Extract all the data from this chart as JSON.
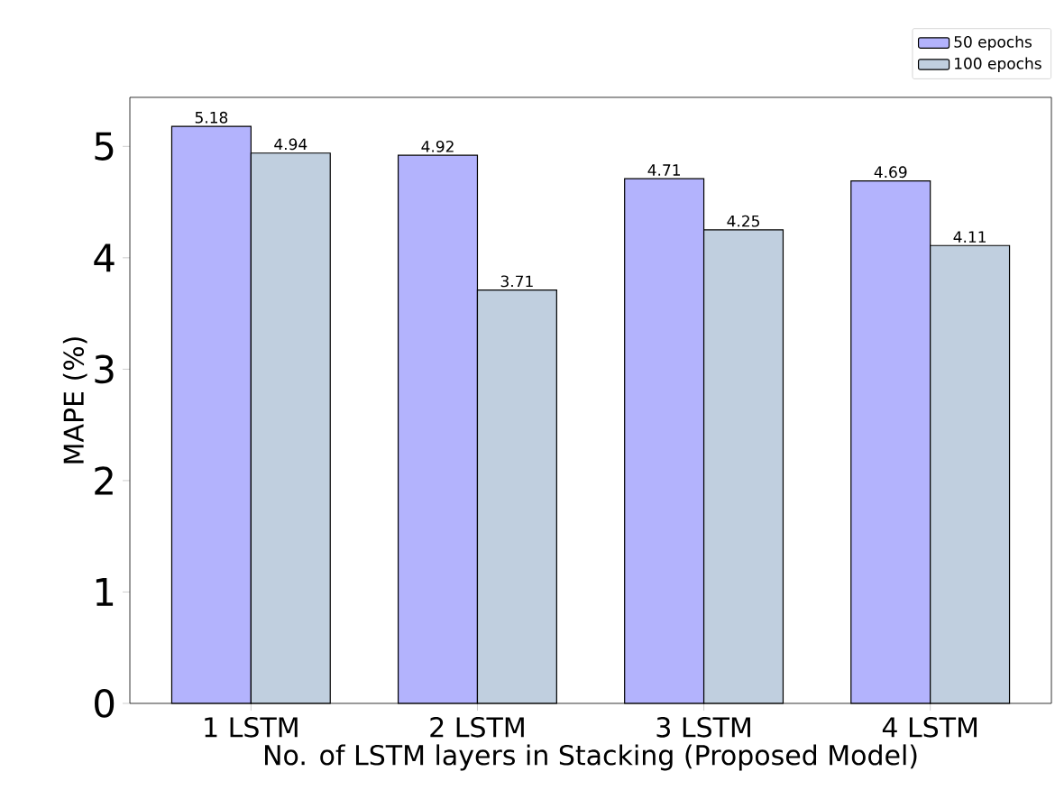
{
  "chart_data": {
    "type": "bar",
    "xlabel": "No. of LSTM layers in Stacking (Proposed Model)",
    "ylabel": "MAPE (%)",
    "categories": [
      "1 LSTM",
      "2 LSTM",
      "3 LSTM",
      "4 LSTM"
    ],
    "series": [
      {
        "name": "50 epochs",
        "color": "#b3b3fd",
        "values": [
          5.18,
          4.92,
          4.71,
          4.69
        ]
      },
      {
        "name": "100 epochs",
        "color": "#c0cfdf",
        "values": [
          4.94,
          3.71,
          4.25,
          4.11
        ]
      }
    ],
    "ylim": [
      0,
      5.44
    ],
    "yticks": [
      0,
      1,
      2,
      3,
      4,
      5
    ],
    "data_labels": true,
    "legend": "top right",
    "grid": false
  }
}
